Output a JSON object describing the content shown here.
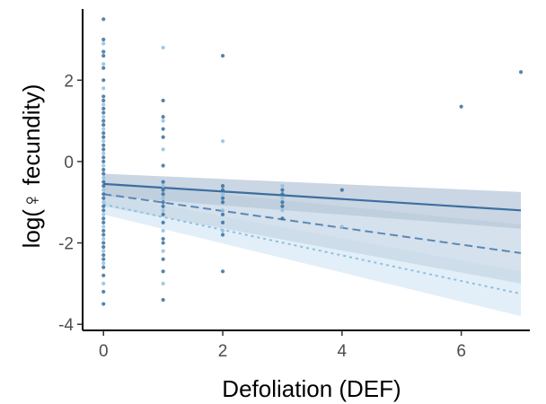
{
  "chart_data": {
    "type": "scatter",
    "title": "",
    "xlabel": "Defoliation (DEF)",
    "ylabel": "log(♀ fecundity)",
    "xlim": [
      -0.35,
      7.15
    ],
    "ylim": [
      -4.15,
      3.75
    ],
    "xticks": [
      0,
      2,
      4,
      6
    ],
    "yticks": [
      -4,
      -2,
      0,
      2
    ],
    "grid": false,
    "legend": "none",
    "colors": {
      "solid": "#3b6fa0",
      "dashed": "#5b88b5",
      "dotted": "#8ec0e0",
      "band_solid": "#b8c8d9",
      "band_dashed": "#c7d7e6",
      "band_dotted": "#d8eaf6",
      "point_dark": "#3a6e9c",
      "point_light": "#8ec0e0"
    },
    "points": [
      {
        "x": 0,
        "y": 3.5
      },
      {
        "x": 0,
        "y": 3.0
      },
      {
        "x": 0,
        "y": 2.9
      },
      {
        "x": 0,
        "y": 2.7
      },
      {
        "x": 0,
        "y": 2.6
      },
      {
        "x": 0,
        "y": 2.4
      },
      {
        "x": 0,
        "y": 2.3
      },
      {
        "x": 0,
        "y": 2.0
      },
      {
        "x": 0,
        "y": 1.8
      },
      {
        "x": 0,
        "y": 1.6
      },
      {
        "x": 0,
        "y": 1.5
      },
      {
        "x": 0,
        "y": 1.4
      },
      {
        "x": 0,
        "y": 1.3
      },
      {
        "x": 0,
        "y": 1.2
      },
      {
        "x": 0,
        "y": 1.1
      },
      {
        "x": 0,
        "y": 1.0
      },
      {
        "x": 0,
        "y": 0.9
      },
      {
        "x": 0,
        "y": 0.8
      },
      {
        "x": 0,
        "y": 0.7
      },
      {
        "x": 0,
        "y": 0.6
      },
      {
        "x": 0,
        "y": 0.5
      },
      {
        "x": 0,
        "y": 0.4
      },
      {
        "x": 0,
        "y": 0.3
      },
      {
        "x": 0,
        "y": 0.2
      },
      {
        "x": 0,
        "y": 0.1
      },
      {
        "x": 0,
        "y": 0.0
      },
      {
        "x": 0,
        "y": -0.1
      },
      {
        "x": 0,
        "y": -0.2
      },
      {
        "x": 0,
        "y": -0.3
      },
      {
        "x": 0,
        "y": -0.4
      },
      {
        "x": 0,
        "y": -0.5
      },
      {
        "x": 0,
        "y": -0.6
      },
      {
        "x": 0,
        "y": -0.7
      },
      {
        "x": 0,
        "y": -0.8
      },
      {
        "x": 0,
        "y": -0.9
      },
      {
        "x": 0,
        "y": -1.0
      },
      {
        "x": 0,
        "y": -1.1
      },
      {
        "x": 0,
        "y": -1.2
      },
      {
        "x": 0,
        "y": -1.3
      },
      {
        "x": 0,
        "y": -1.4
      },
      {
        "x": 0,
        "y": -1.5
      },
      {
        "x": 0,
        "y": -1.6
      },
      {
        "x": 0,
        "y": -1.7
      },
      {
        "x": 0,
        "y": -1.8
      },
      {
        "x": 0,
        "y": -1.9
      },
      {
        "x": 0,
        "y": -2.0
      },
      {
        "x": 0,
        "y": -2.1
      },
      {
        "x": 0,
        "y": -2.2
      },
      {
        "x": 0,
        "y": -2.3
      },
      {
        "x": 0,
        "y": -2.4
      },
      {
        "x": 0,
        "y": -2.5
      },
      {
        "x": 0,
        "y": -2.6
      },
      {
        "x": 0,
        "y": -2.8
      },
      {
        "x": 0,
        "y": -3.0
      },
      {
        "x": 0,
        "y": -3.2
      },
      {
        "x": 0,
        "y": -3.5
      },
      {
        "x": 1,
        "y": 2.8
      },
      {
        "x": 1,
        "y": 1.5
      },
      {
        "x": 1,
        "y": 1.1
      },
      {
        "x": 1,
        "y": 1.0
      },
      {
        "x": 1,
        "y": 0.8
      },
      {
        "x": 1,
        "y": 0.6
      },
      {
        "x": 1,
        "y": 0.3
      },
      {
        "x": 1,
        "y": -0.1
      },
      {
        "x": 1,
        "y": -0.5
      },
      {
        "x": 1,
        "y": -0.6
      },
      {
        "x": 1,
        "y": -0.7
      },
      {
        "x": 1,
        "y": -0.8
      },
      {
        "x": 1,
        "y": -0.9
      },
      {
        "x": 1,
        "y": -1.0
      },
      {
        "x": 1,
        "y": -1.1
      },
      {
        "x": 1,
        "y": -1.2
      },
      {
        "x": 1,
        "y": -1.3
      },
      {
        "x": 1,
        "y": -1.5
      },
      {
        "x": 1,
        "y": -1.7
      },
      {
        "x": 1,
        "y": -1.9
      },
      {
        "x": 1,
        "y": -2.0
      },
      {
        "x": 1,
        "y": -2.2
      },
      {
        "x": 1,
        "y": -2.4
      },
      {
        "x": 1,
        "y": -2.7
      },
      {
        "x": 1,
        "y": -3.0
      },
      {
        "x": 1,
        "y": -3.4
      },
      {
        "x": 2,
        "y": 2.6
      },
      {
        "x": 2,
        "y": 0.5
      },
      {
        "x": 2,
        "y": -0.6
      },
      {
        "x": 2,
        "y": -0.7
      },
      {
        "x": 2,
        "y": -0.8
      },
      {
        "x": 2,
        "y": -0.9
      },
      {
        "x": 2,
        "y": -1.0
      },
      {
        "x": 2,
        "y": -1.2
      },
      {
        "x": 2,
        "y": -1.3
      },
      {
        "x": 2,
        "y": -1.5
      },
      {
        "x": 2,
        "y": -1.7
      },
      {
        "x": 2,
        "y": -1.8
      },
      {
        "x": 2,
        "y": -2.7
      },
      {
        "x": 3,
        "y": -0.6
      },
      {
        "x": 3,
        "y": -0.7
      },
      {
        "x": 3,
        "y": -0.8
      },
      {
        "x": 3,
        "y": -0.9
      },
      {
        "x": 3,
        "y": -1.0
      },
      {
        "x": 3,
        "y": -1.1
      },
      {
        "x": 3,
        "y": -1.2
      },
      {
        "x": 3,
        "y": -1.4
      },
      {
        "x": 4,
        "y": -0.7
      },
      {
        "x": 4,
        "y": -1.6
      },
      {
        "x": 6,
        "y": 1.35
      },
      {
        "x": 7,
        "y": 2.2
      }
    ],
    "series": [
      {
        "style": "solid",
        "x": [
          0,
          7
        ],
        "y": [
          -0.55,
          -1.2
        ],
        "band_lower": [
          -0.85,
          -1.65
        ],
        "band_upper": [
          -0.3,
          -0.75
        ]
      },
      {
        "style": "dashed",
        "x": [
          0,
          7
        ],
        "y": [
          -0.8,
          -2.25
        ],
        "band_lower": [
          -1.1,
          -3.0
        ],
        "band_upper": [
          -0.5,
          -1.55
        ]
      },
      {
        "style": "dotted",
        "x": [
          0,
          7
        ],
        "y": [
          -1.05,
          -3.25
        ],
        "band_lower": [
          -1.3,
          -3.8
        ],
        "band_upper": [
          -0.8,
          -2.7
        ]
      }
    ]
  }
}
